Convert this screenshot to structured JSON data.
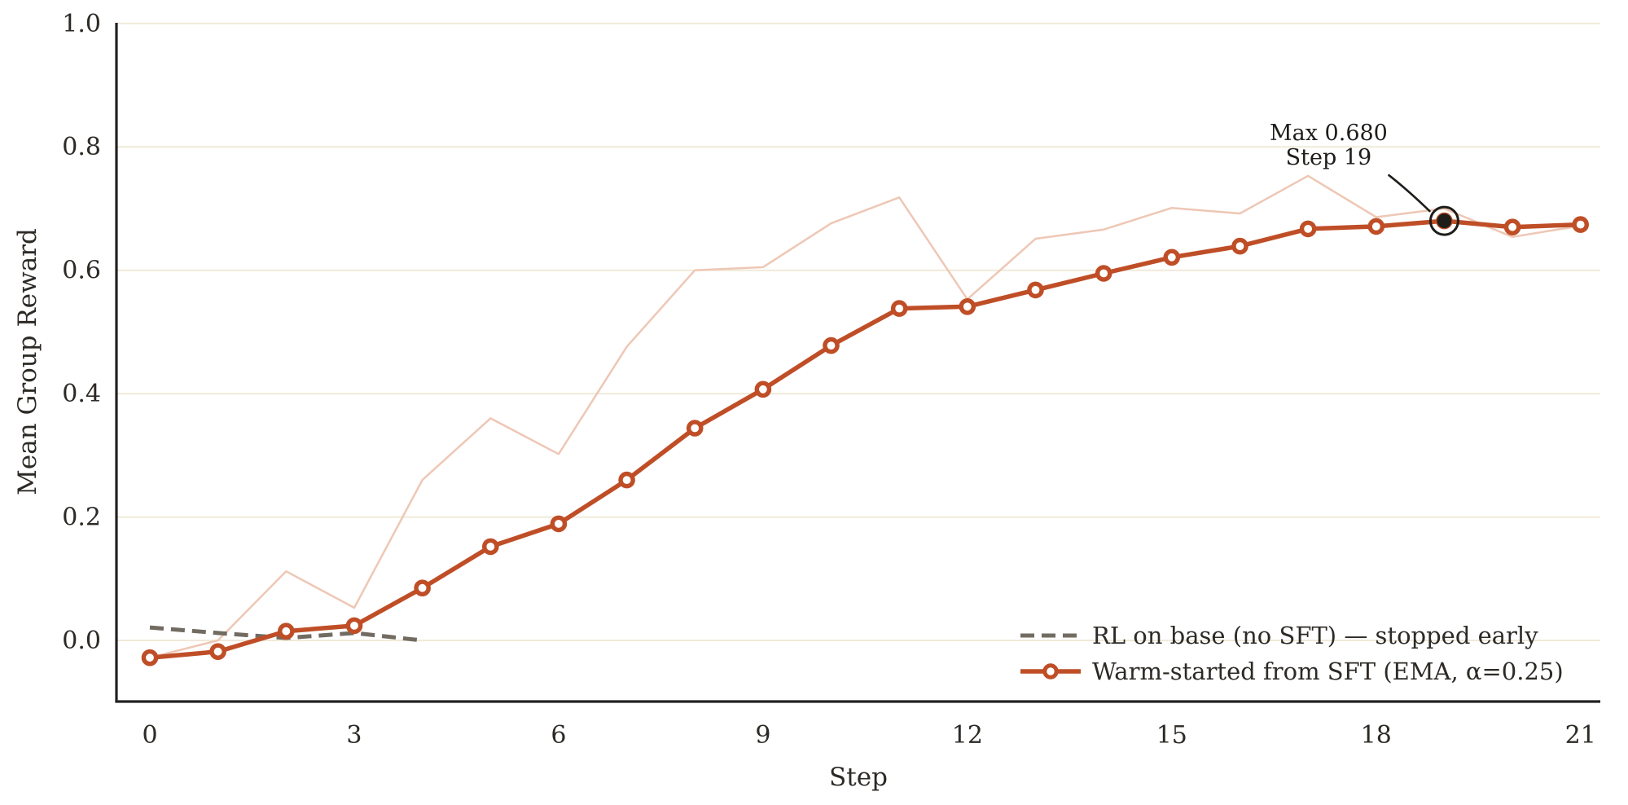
{
  "chart_data": {
    "type": "line",
    "title": "",
    "xlabel": "Step",
    "ylabel": "Mean Group Reward",
    "xlim": [
      -0.49,
      21.29
    ],
    "ylim": [
      -0.099,
      1.001
    ],
    "xticks": [
      0,
      3,
      6,
      9,
      12,
      15,
      18,
      21
    ],
    "yticks": [
      "0.0",
      "0.2",
      "0.4",
      "0.6",
      "0.8",
      "1.0"
    ],
    "grid": "horizontal",
    "legend_position": "lower right",
    "x": [
      0,
      1,
      2,
      3,
      4,
      5,
      6,
      7,
      8,
      9,
      10,
      11,
      12,
      13,
      14,
      15,
      16,
      17,
      18,
      19,
      20,
      21
    ],
    "series": [
      {
        "name": "Warm-started from SFT (raw, unsmoothed)",
        "role": "raw",
        "in_legend": false,
        "color": "#eec7b5",
        "line_style": "solid",
        "line_width": 2.5,
        "x": [
          0,
          1,
          2,
          3,
          4,
          5,
          6,
          7,
          8,
          9,
          10,
          11,
          12,
          13,
          14,
          15,
          16,
          17,
          18,
          19,
          20,
          21
        ],
        "values": [
          -0.028,
          0.0,
          0.112,
          0.053,
          0.26,
          0.36,
          0.302,
          0.476,
          0.6,
          0.605,
          0.676,
          0.718,
          0.553,
          0.651,
          0.666,
          0.701,
          0.692,
          0.753,
          0.686,
          0.7,
          0.654,
          0.672
        ]
      },
      {
        "name": "RL on base (no SFT) — stopped early",
        "role": "baseline",
        "in_legend": true,
        "color": "#716b61",
        "line_style": "dashed",
        "line_width": 5,
        "x": [
          0,
          1,
          2,
          3,
          4
        ],
        "values": [
          0.021,
          0.012,
          0.004,
          0.012,
          0.0
        ]
      },
      {
        "name": "Warm-started from SFT (EMA, α=0.25)",
        "role": "ema",
        "in_legend": true,
        "color": "#bf4e27",
        "line_style": "solid",
        "line_width": 5.5,
        "marker": "circle-open",
        "x": [
          0,
          1,
          2,
          3,
          4,
          5,
          6,
          7,
          8,
          9,
          10,
          11,
          12,
          13,
          14,
          15,
          16,
          17,
          18,
          19,
          20,
          21
        ],
        "values": [
          -0.028,
          -0.018,
          0.015,
          0.024,
          0.085,
          0.152,
          0.189,
          0.26,
          0.344,
          0.407,
          0.478,
          0.538,
          0.541,
          0.568,
          0.595,
          0.621,
          0.639,
          0.667,
          0.671,
          0.68,
          0.67,
          0.674
        ]
      }
    ],
    "legend": [
      {
        "label": "RL on base (no SFT) — stopped early",
        "series_role": "baseline"
      },
      {
        "label": "Warm-started from SFT (EMA, α=0.25)",
        "series_role": "ema"
      }
    ],
    "annotation": {
      "line1": "Max 0.680",
      "line2": "Step 19",
      "step": 19,
      "value": 0.68
    },
    "style": {
      "grid_color": "#f1ead9",
      "spine_color": "#222120",
      "tick_label_color": "#2d2a26",
      "axis_label_color": "#2d2a26",
      "legend_text_color": "#2d2a26",
      "annotation_color": "#1f1d1a",
      "marker_fill": "#ffffff",
      "background": "#ffffff"
    }
  }
}
